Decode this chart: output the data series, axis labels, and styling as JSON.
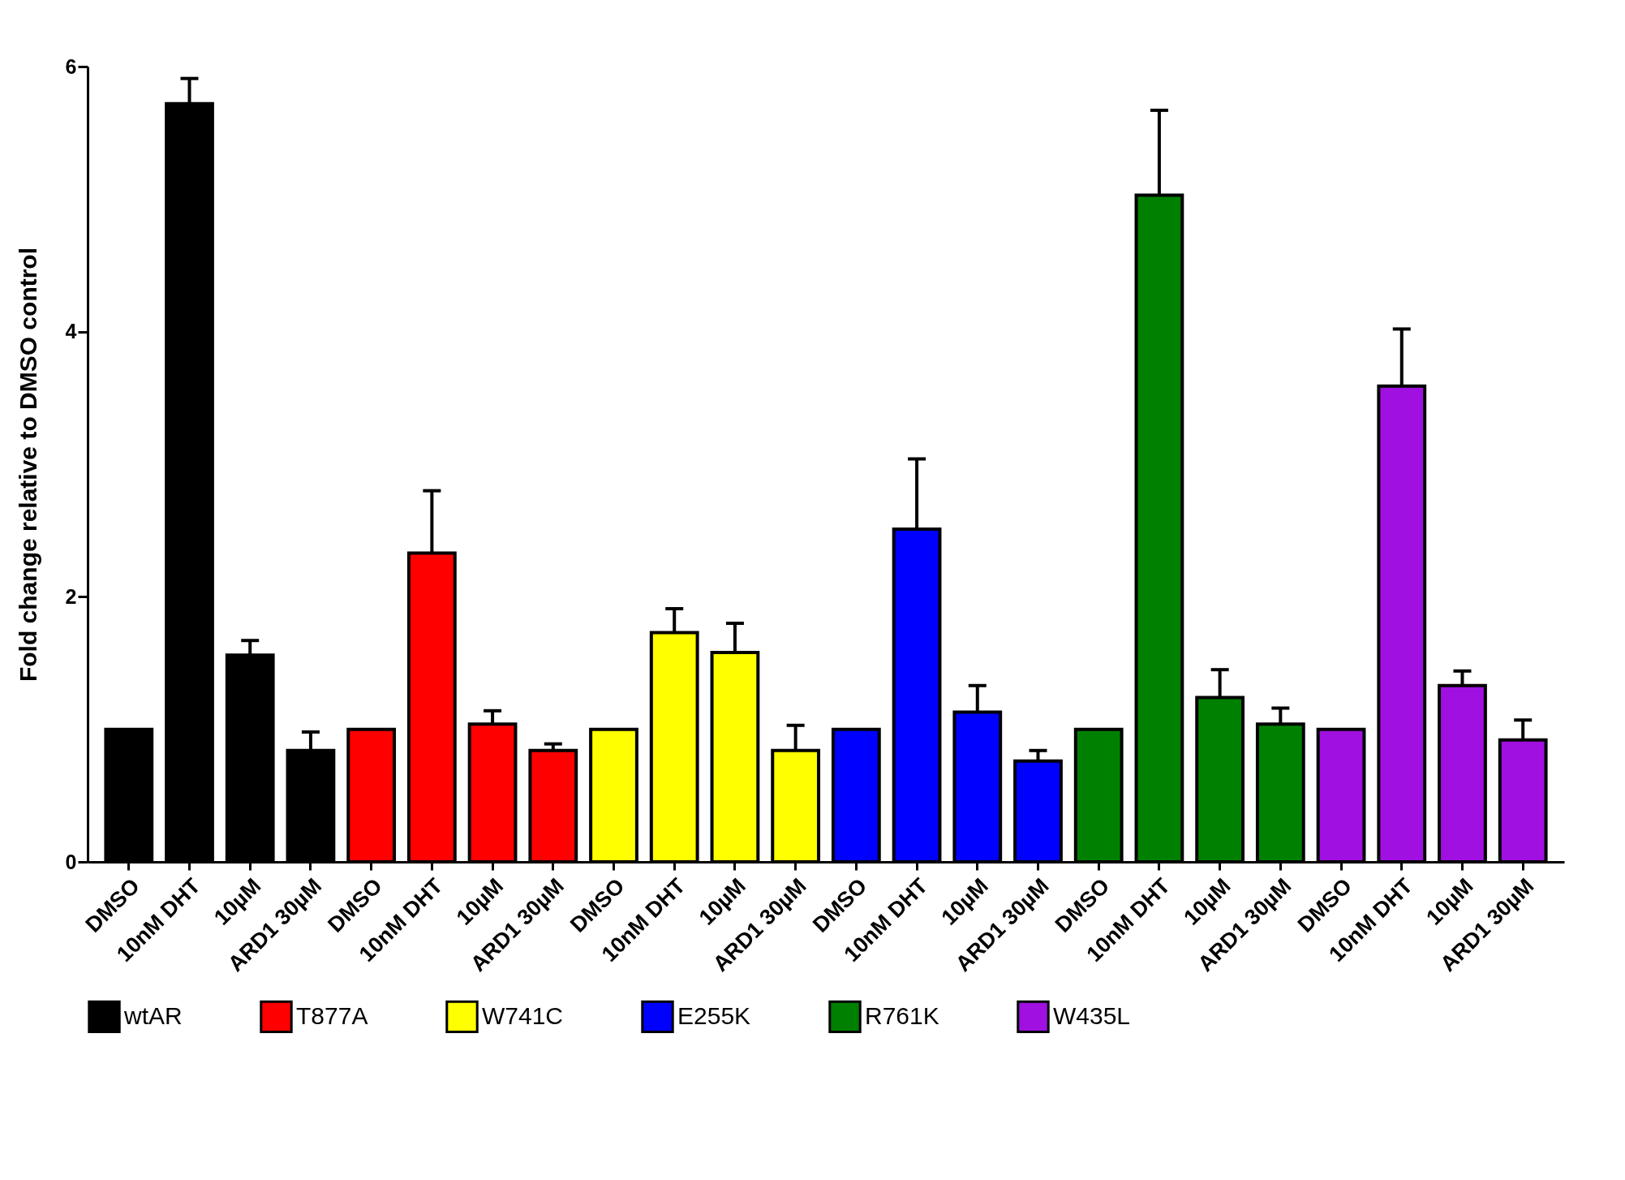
{
  "chart_data": {
    "type": "bar",
    "ylabel": "Fold change relative to DMSO control",
    "categories": [
      "DMSO",
      "10nM DHT",
      "10µM",
      "ARD1 30µM",
      "DMSO",
      "10nM DHT",
      "10µM",
      "ARD1 30µM",
      "DMSO",
      "10nM DHT",
      "10µM",
      "ARD1 30µM",
      "DMSO",
      "10nM DHT",
      "10µM",
      "ARD1 30µM",
      "DMSO",
      "10nM DHT",
      "10µM",
      "ARD1 30µM",
      "DMSO",
      "10nM DHT",
      "10µM",
      "ARD1 30µM"
    ],
    "series": [
      {
        "name": "wtAR",
        "color": "#000000",
        "values": [
          1.0,
          5.72,
          1.56,
          0.84,
          null,
          null,
          null,
          null,
          null,
          null,
          null,
          null,
          null,
          null,
          null,
          null,
          null,
          null,
          null,
          null,
          null,
          null,
          null,
          null
        ],
        "errors": [
          null,
          0.19,
          0.11,
          0.14,
          null,
          null,
          null,
          null,
          null,
          null,
          null,
          null,
          null,
          null,
          null,
          null,
          null,
          null,
          null,
          null,
          null,
          null,
          null,
          null
        ]
      },
      {
        "name": "T877A",
        "color": "#ff0000",
        "values": [
          null,
          null,
          null,
          null,
          1.0,
          2.33,
          1.04,
          0.84,
          null,
          null,
          null,
          null,
          null,
          null,
          null,
          null,
          null,
          null,
          null,
          null,
          null,
          null,
          null,
          null
        ],
        "errors": [
          null,
          null,
          null,
          null,
          null,
          0.47,
          0.1,
          0.05,
          null,
          null,
          null,
          null,
          null,
          null,
          null,
          null,
          null,
          null,
          null,
          null,
          null,
          null,
          null,
          null
        ]
      },
      {
        "name": "W741C",
        "color": "#ffff00",
        "values": [
          null,
          null,
          null,
          null,
          null,
          null,
          null,
          null,
          1.0,
          1.73,
          1.58,
          0.84,
          null,
          null,
          null,
          null,
          null,
          null,
          null,
          null,
          null,
          null,
          null,
          null
        ],
        "errors": [
          null,
          null,
          null,
          null,
          null,
          null,
          null,
          null,
          null,
          0.18,
          0.22,
          0.19,
          null,
          null,
          null,
          null,
          null,
          null,
          null,
          null,
          null,
          null,
          null,
          null
        ]
      },
      {
        "name": "E255K",
        "color": "#0000ff",
        "values": [
          null,
          null,
          null,
          null,
          null,
          null,
          null,
          null,
          null,
          null,
          null,
          null,
          1.0,
          2.51,
          1.13,
          0.76,
          null,
          null,
          null,
          null,
          null,
          null,
          null,
          null
        ],
        "errors": [
          null,
          null,
          null,
          null,
          null,
          null,
          null,
          null,
          null,
          null,
          null,
          null,
          null,
          0.53,
          0.2,
          0.08,
          null,
          null,
          null,
          null,
          null,
          null,
          null,
          null
        ]
      },
      {
        "name": "R761K",
        "color": "#008000",
        "values": [
          null,
          null,
          null,
          null,
          null,
          null,
          null,
          null,
          null,
          null,
          null,
          null,
          null,
          null,
          null,
          null,
          1.0,
          5.03,
          1.24,
          1.04,
          null,
          null,
          null,
          null
        ],
        "errors": [
          null,
          null,
          null,
          null,
          null,
          null,
          null,
          null,
          null,
          null,
          null,
          null,
          null,
          null,
          null,
          null,
          null,
          0.64,
          0.21,
          0.12,
          null,
          null,
          null,
          null
        ]
      },
      {
        "name": "W435L",
        "color": "#a010e0",
        "values": [
          null,
          null,
          null,
          null,
          null,
          null,
          null,
          null,
          null,
          null,
          null,
          null,
          null,
          null,
          null,
          null,
          null,
          null,
          null,
          null,
          1.0,
          3.59,
          1.33,
          0.92
        ],
        "errors": [
          null,
          null,
          null,
          null,
          null,
          null,
          null,
          null,
          null,
          null,
          null,
          null,
          null,
          null,
          null,
          null,
          null,
          null,
          null,
          null,
          null,
          0.43,
          0.11,
          0.15
        ]
      }
    ],
    "ylim": [
      0,
      6
    ],
    "yticks": [
      0,
      2,
      4,
      6
    ],
    "grid": false,
    "legend": "bottom"
  }
}
